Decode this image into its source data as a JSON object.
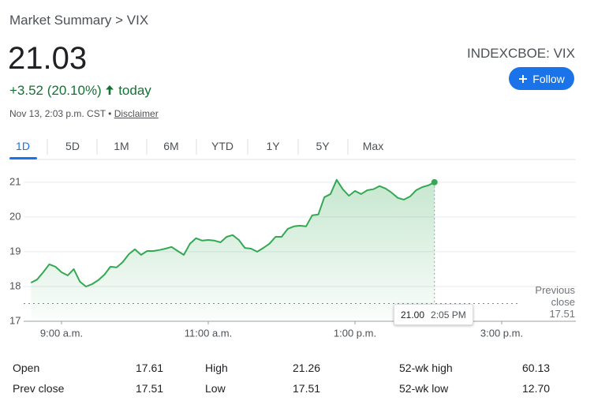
{
  "breadcrumb": "Market Summary > VIX",
  "price": "21.03",
  "change": "+3.52 (20.10%)",
  "change_period": "today",
  "ticker": "INDEXCBOE: VIX",
  "follow": "Follow",
  "timestamp": "Nov 13, 2:03 p.m. CST",
  "disclaimer": "Disclaimer",
  "tabs": [
    "1D",
    "5D",
    "1M",
    "6M",
    "YTD",
    "1Y",
    "5Y",
    "Max"
  ],
  "chart_data": {
    "type": "line",
    "color": "#34a853",
    "x": [
      515,
      520,
      525,
      530,
      535,
      540,
      545,
      550,
      555,
      560,
      565,
      570,
      575,
      580,
      585,
      590,
      595,
      600,
      605,
      610,
      615,
      620,
      625,
      630,
      635,
      640,
      645,
      650,
      655,
      660,
      665,
      670,
      675,
      680,
      685,
      690,
      695,
      700,
      705,
      710,
      715,
      720,
      725,
      730,
      735,
      740,
      745,
      750,
      755,
      760,
      765,
      770,
      775,
      780,
      785,
      790,
      795,
      800,
      805,
      810,
      815,
      820,
      825,
      830,
      835,
      840,
      845
    ],
    "values": [
      18.11,
      18.2,
      18.41,
      18.64,
      18.57,
      18.41,
      18.32,
      18.5,
      18.14,
      18.0,
      18.07,
      18.18,
      18.34,
      18.57,
      18.55,
      18.7,
      18.93,
      19.07,
      18.91,
      19.02,
      19.02,
      19.05,
      19.09,
      19.14,
      19.02,
      18.91,
      19.23,
      19.39,
      19.32,
      19.34,
      19.32,
      19.27,
      19.43,
      19.48,
      19.34,
      19.11,
      19.09,
      19.0,
      19.11,
      19.23,
      19.43,
      19.43,
      19.66,
      19.73,
      19.75,
      19.73,
      20.05,
      20.07,
      20.57,
      20.66,
      21.07,
      20.8,
      20.61,
      20.75,
      20.66,
      20.77,
      20.8,
      20.89,
      20.82,
      20.7,
      20.55,
      20.5,
      20.59,
      20.77,
      20.86,
      20.91,
      21.0
    ],
    "xlim": [
      510,
      960
    ],
    "xticks": [
      {
        "value": 540,
        "label": "9:00 a.m."
      },
      {
        "value": 660,
        "label": "11:00 a.m."
      },
      {
        "value": 780,
        "label": "1:00 p.m."
      },
      {
        "value": 900,
        "label": "3:00 p.m."
      }
    ],
    "ylim": [
      17,
      21.36
    ],
    "yticks": [
      17,
      18,
      19,
      20,
      21
    ],
    "grid": true,
    "previous_close": {
      "label": "Previous close",
      "value": 17.51
    },
    "tooltip": {
      "label": "21.00",
      "time": "2:05 PM"
    }
  },
  "stats": [
    [
      "Open",
      "17.61",
      "High",
      "21.26",
      "52-wk high",
      "60.13"
    ],
    [
      "Prev close",
      "17.51",
      "Low",
      "17.51",
      "52-wk low",
      "12.70"
    ]
  ]
}
